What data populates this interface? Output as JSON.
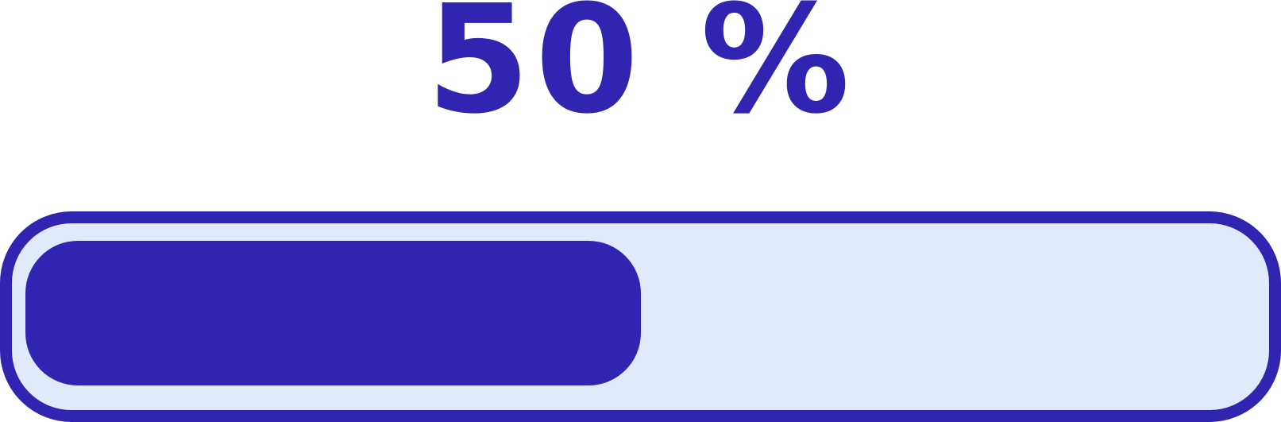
{
  "progress": {
    "label": "50 %",
    "value_percent": 50
  },
  "colors": {
    "accent": "#3124b0",
    "track_background": "#dfebfb",
    "page_background": "#ffffff"
  }
}
